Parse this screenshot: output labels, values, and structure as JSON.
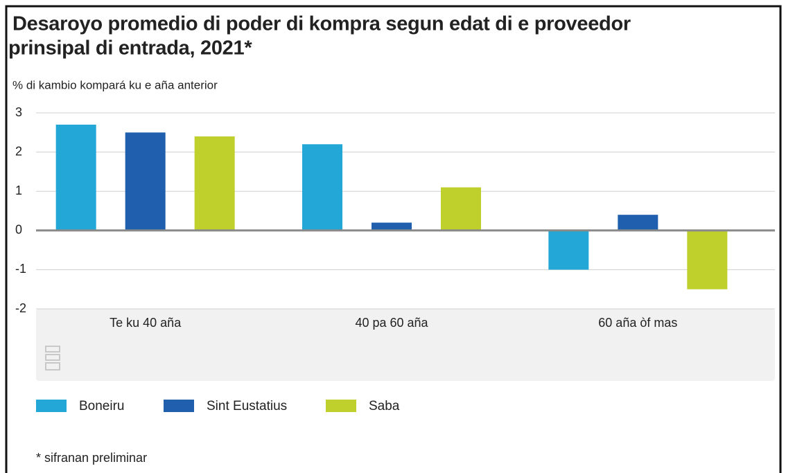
{
  "chart_data": {
    "type": "bar",
    "title": [
      "Desaroyo promedio di poder di kompra segun edat di e proveedor",
      "prinsipal di entrada, 2021*"
    ],
    "subtitle": "% di kambio kompará ku e aña anterior",
    "categories": [
      "Te ku 40 aña",
      "40 pa 60 aña",
      "60 aña òf mas"
    ],
    "series": [
      {
        "name": "Boneiru",
        "color": "#22a7d6",
        "values": [
          2.7,
          2.2,
          -1.0
        ]
      },
      {
        "name": "Sint Eustatius",
        "color": "#1f5fad",
        "values": [
          2.5,
          0.2,
          0.4
        ]
      },
      {
        "name": "Saba",
        "color": "#bfcf2c",
        "values": [
          2.4,
          1.1,
          -1.5
        ]
      }
    ],
    "ylim": [
      -2,
      3
    ],
    "yticks": [
      -2,
      -1,
      0,
      1,
      2,
      3
    ],
    "grid": true,
    "footnote": "* sifranan preliminar"
  }
}
